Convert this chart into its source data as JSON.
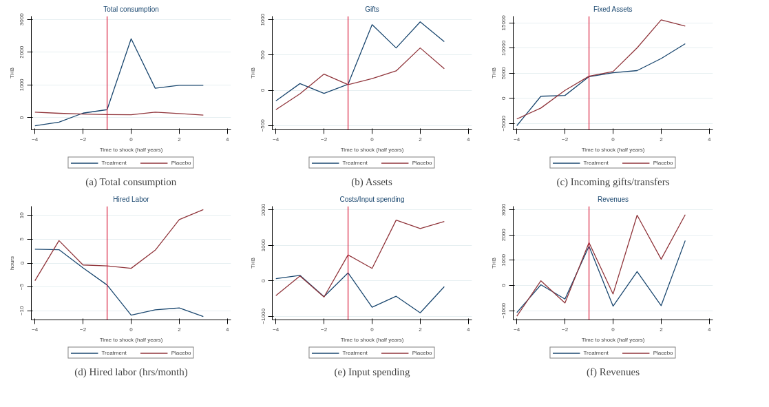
{
  "chart_data": [
    {
      "type": "line",
      "title": "Total consumption",
      "xlabel": "Time to shock (half years)",
      "ylabel": "THB",
      "annotations": [
        "(a) Total consumption"
      ],
      "x": [
        -4,
        -3,
        -2,
        -1,
        0,
        1,
        2,
        3
      ],
      "xlim": [
        -4.15,
        4.15
      ],
      "xticks": [
        -4,
        -2,
        0,
        2,
        4
      ],
      "ylim": [
        -370,
        3100
      ],
      "yticks": [
        0,
        1000,
        2000,
        3000
      ],
      "grid": "y",
      "legend": "bottom",
      "ref_lines": [
        {
          "axis": "x",
          "value": -1,
          "color": "#d7193a"
        }
      ],
      "series": [
        {
          "name": "Treatment",
          "color": "#1a476f",
          "values": [
            -245,
            -135,
            140,
            245,
            2410,
            900,
            990,
            990
          ]
        },
        {
          "name": "Placebo",
          "color": "#90353b",
          "values": [
            170,
            135,
            110,
            95,
            90,
            170,
            125,
            80
          ]
        }
      ]
    },
    {
      "type": "line",
      "title": "Gifts",
      "xlabel": "Time to shock (half years)",
      "ylabel": "THB",
      "annotations": [
        "(b) Assets"
      ],
      "x": [
        -4,
        -3,
        -2,
        -1,
        0,
        1,
        2,
        3
      ],
      "xlim": [
        -4.15,
        4.15
      ],
      "xticks": [
        -4,
        -2,
        0,
        2,
        4
      ],
      "ylim": [
        -560,
        1050
      ],
      "yticks": [
        -500,
        0,
        500,
        1000
      ],
      "grid": "y",
      "legend": "bottom",
      "ref_lines": [
        {
          "axis": "x",
          "value": -1,
          "color": "#d7193a"
        }
      ],
      "series": [
        {
          "name": "Treatment",
          "color": "#1a476f",
          "values": [
            -150,
            95,
            -45,
            85,
            930,
            600,
            970,
            690
          ]
        },
        {
          "name": "Placebo",
          "color": "#90353b",
          "values": [
            -275,
            -50,
            230,
            80,
            165,
            275,
            600,
            305
          ]
        }
      ]
    },
    {
      "type": "line",
      "title": "Fixed Assets",
      "xlabel": "Time to shock (half years)",
      "ylabel": "THB",
      "annotations": [
        "(c) Incoming gifts/transfers"
      ],
      "x": [
        -4,
        -3,
        -2,
        -1,
        0,
        1,
        2,
        3
      ],
      "xlim": [
        -4.15,
        4.15
      ],
      "xticks": [
        -4,
        -2,
        0,
        2,
        4
      ],
      "ylim": [
        -6250,
        16350
      ],
      "yticks": [
        -5000,
        0,
        5000,
        10000,
        15000
      ],
      "grid": "y",
      "legend": "bottom",
      "ref_lines": [
        {
          "axis": "x",
          "value": -1,
          "color": "#d7193a"
        }
      ],
      "series": [
        {
          "name": "Treatment",
          "color": "#1a476f",
          "values": [
            -5430,
            430,
            580,
            4330,
            5100,
            5530,
            7930,
            10870
          ]
        },
        {
          "name": "Placebo",
          "color": "#90353b",
          "values": [
            -4090,
            -1920,
            1590,
            4420,
            5340,
            10050,
            15620,
            14370
          ]
        }
      ]
    },
    {
      "type": "line",
      "title": "Hired Labor",
      "xlabel": "Time to shock (half years)",
      "ylabel": "hours",
      "annotations": [
        "(d) Hired labor (hrs/month)"
      ],
      "x": [
        -4,
        -3,
        -2,
        -1,
        0,
        1,
        2,
        3
      ],
      "xlim": [
        -4.15,
        4.15
      ],
      "xticks": [
        -4,
        -2,
        0,
        2,
        4
      ],
      "ylim": [
        -11.9,
        11.9
      ],
      "yticks": [
        -10,
        -5,
        0,
        5,
        10
      ],
      "grid": "y",
      "legend": "bottom",
      "ref_lines": [
        {
          "axis": "x",
          "value": -1,
          "color": "#d7193a"
        }
      ],
      "series": [
        {
          "name": "Treatment",
          "color": "#1a476f",
          "values": [
            2.9,
            2.8,
            -1.0,
            -4.6,
            -10.9,
            -9.8,
            -9.4,
            -11.2
          ]
        },
        {
          "name": "Placebo",
          "color": "#90353b",
          "values": [
            -3.7,
            4.7,
            -0.4,
            -0.6,
            -1.1,
            2.7,
            9.1,
            11.2
          ]
        }
      ]
    },
    {
      "type": "line",
      "title": "Costs/Input spending",
      "xlabel": "Time to shock (half years)",
      "ylabel": "THB",
      "annotations": [
        "(e) Input spending"
      ],
      "x": [
        -4,
        -3,
        -2,
        -1,
        0,
        1,
        2,
        3
      ],
      "xlim": [
        -4.15,
        4.15
      ],
      "xticks": [
        -4,
        -2,
        0,
        2,
        4
      ],
      "ylim": [
        -1100,
        2100
      ],
      "yticks": [
        -1000,
        0,
        1000,
        2000
      ],
      "grid": "y",
      "legend": "bottom",
      "ref_lines": [
        {
          "axis": "x",
          "value": -1,
          "color": "#d7193a"
        }
      ],
      "series": [
        {
          "name": "Treatment",
          "color": "#1a476f",
          "values": [
            60,
            155,
            -445,
            225,
            -745,
            -435,
            -900,
            -165
          ]
        },
        {
          "name": "Placebo",
          "color": "#90353b",
          "values": [
            -415,
            135,
            -455,
            730,
            350,
            1710,
            1470,
            1670
          ]
        }
      ]
    },
    {
      "type": "line",
      "title": "Revenues",
      "xlabel": "Time to shock (half years)",
      "ylabel": "THB",
      "annotations": [
        "(f) Revenues"
      ],
      "x": [
        -4,
        -3,
        -2,
        -1,
        0,
        1,
        2,
        3
      ],
      "xlim": [
        -4.15,
        4.15
      ],
      "xticks": [
        -4,
        -2,
        0,
        2,
        4
      ],
      "ylim": [
        -1360,
        3140
      ],
      "yticks": [
        -1000,
        0,
        1000,
        2000,
        3000
      ],
      "grid": "y",
      "legend": "bottom",
      "ref_lines": [
        {
          "axis": "x",
          "value": -1,
          "color": "#d7193a"
        }
      ],
      "series": [
        {
          "name": "Treatment",
          "color": "#1a476f",
          "values": [
            -1070,
            30,
            -535,
            1560,
            -815,
            555,
            -795,
            1780
          ]
        },
        {
          "name": "Placebo",
          "color": "#90353b",
          "values": [
            -1215,
            190,
            -690,
            1700,
            -335,
            2785,
            1045,
            2805
          ]
        }
      ]
    }
  ]
}
